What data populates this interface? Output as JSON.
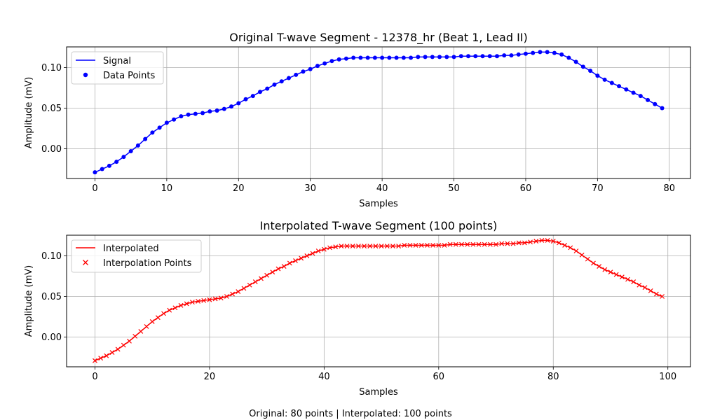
{
  "footer_text": "Original: 80 points | Interpolated: 100 points",
  "chart_data": [
    {
      "type": "line",
      "title": "Original T-wave Segment - 12378_hr (Beat 1, Lead II)",
      "xlabel": "Samples",
      "ylabel": "Amplitude (mV)",
      "xlim": [
        -3.95,
        82.95
      ],
      "ylim": [
        -0.0366,
        0.1254
      ],
      "xticks": [
        0,
        10,
        20,
        30,
        40,
        50,
        60,
        70,
        80
      ],
      "yticks": [
        0.0,
        0.05,
        0.1
      ],
      "ytick_labels": [
        "0.00",
        "0.05",
        "0.10"
      ],
      "grid": true,
      "legend_position": "upper-left",
      "series": [
        {
          "name": "Signal",
          "style": "line",
          "color": "#0000ff",
          "x_start": 0,
          "x_step": 1,
          "values": [
            -0.029,
            -0.025,
            -0.021,
            -0.016,
            -0.01,
            -0.003,
            0.004,
            0.012,
            0.02,
            0.026,
            0.032,
            0.036,
            0.04,
            0.042,
            0.043,
            0.044,
            0.046,
            0.047,
            0.049,
            0.052,
            0.056,
            0.061,
            0.065,
            0.07,
            0.074,
            0.079,
            0.083,
            0.087,
            0.091,
            0.095,
            0.098,
            0.102,
            0.105,
            0.108,
            0.11,
            0.111,
            0.112,
            0.112,
            0.112,
            0.112,
            0.112,
            0.112,
            0.112,
            0.112,
            0.112,
            0.113,
            0.113,
            0.113,
            0.113,
            0.113,
            0.113,
            0.114,
            0.114,
            0.114,
            0.114,
            0.114,
            0.114,
            0.115,
            0.115,
            0.116,
            0.117,
            0.118,
            0.119,
            0.119,
            0.118,
            0.116,
            0.112,
            0.107,
            0.101,
            0.096,
            0.09,
            0.085,
            0.081,
            0.077,
            0.073,
            0.069,
            0.065,
            0.06,
            0.055,
            0.05
          ]
        },
        {
          "name": "Data Points",
          "style": "marker-circle",
          "color": "#0000ff",
          "same_as": "Signal"
        }
      ]
    },
    {
      "type": "line",
      "title": "Interpolated T-wave Segment (100 points)",
      "xlabel": "Samples",
      "ylabel": "Amplitude (mV)",
      "xlim": [
        -4.95,
        103.95
      ],
      "ylim": [
        -0.0366,
        0.1254
      ],
      "xticks": [
        0,
        20,
        40,
        60,
        80,
        100
      ],
      "yticks": [
        0.0,
        0.05,
        0.1
      ],
      "ytick_labels": [
        "0.00",
        "0.05",
        "0.10"
      ],
      "grid": true,
      "legend_position": "upper-left",
      "series": [
        {
          "name": "Interpolated",
          "style": "line",
          "color": "#ff0000",
          "x_start": 0,
          "x_step": 1,
          "values": [
            -0.029,
            -0.026,
            -0.023,
            -0.019,
            -0.015,
            -0.01,
            -0.005,
            0.001,
            0.007,
            0.013,
            0.019,
            0.024,
            0.029,
            0.033,
            0.036,
            0.039,
            0.041,
            0.043,
            0.044,
            0.045,
            0.046,
            0.047,
            0.048,
            0.05,
            0.053,
            0.056,
            0.06,
            0.064,
            0.068,
            0.072,
            0.076,
            0.08,
            0.084,
            0.087,
            0.091,
            0.094,
            0.097,
            0.1,
            0.103,
            0.106,
            0.108,
            0.11,
            0.111,
            0.112,
            0.112,
            0.112,
            0.112,
            0.112,
            0.112,
            0.112,
            0.112,
            0.112,
            0.112,
            0.112,
            0.113,
            0.113,
            0.113,
            0.113,
            0.113,
            0.113,
            0.113,
            0.113,
            0.114,
            0.114,
            0.114,
            0.114,
            0.114,
            0.114,
            0.114,
            0.114,
            0.114,
            0.115,
            0.115,
            0.115,
            0.116,
            0.116,
            0.117,
            0.118,
            0.119,
            0.119,
            0.118,
            0.116,
            0.113,
            0.11,
            0.106,
            0.101,
            0.096,
            0.091,
            0.087,
            0.083,
            0.08,
            0.077,
            0.074,
            0.071,
            0.068,
            0.064,
            0.061,
            0.057,
            0.053,
            0.05
          ]
        },
        {
          "name": "Interpolation Points",
          "style": "marker-x",
          "color": "#ff0000",
          "same_as": "Interpolated"
        }
      ]
    }
  ]
}
